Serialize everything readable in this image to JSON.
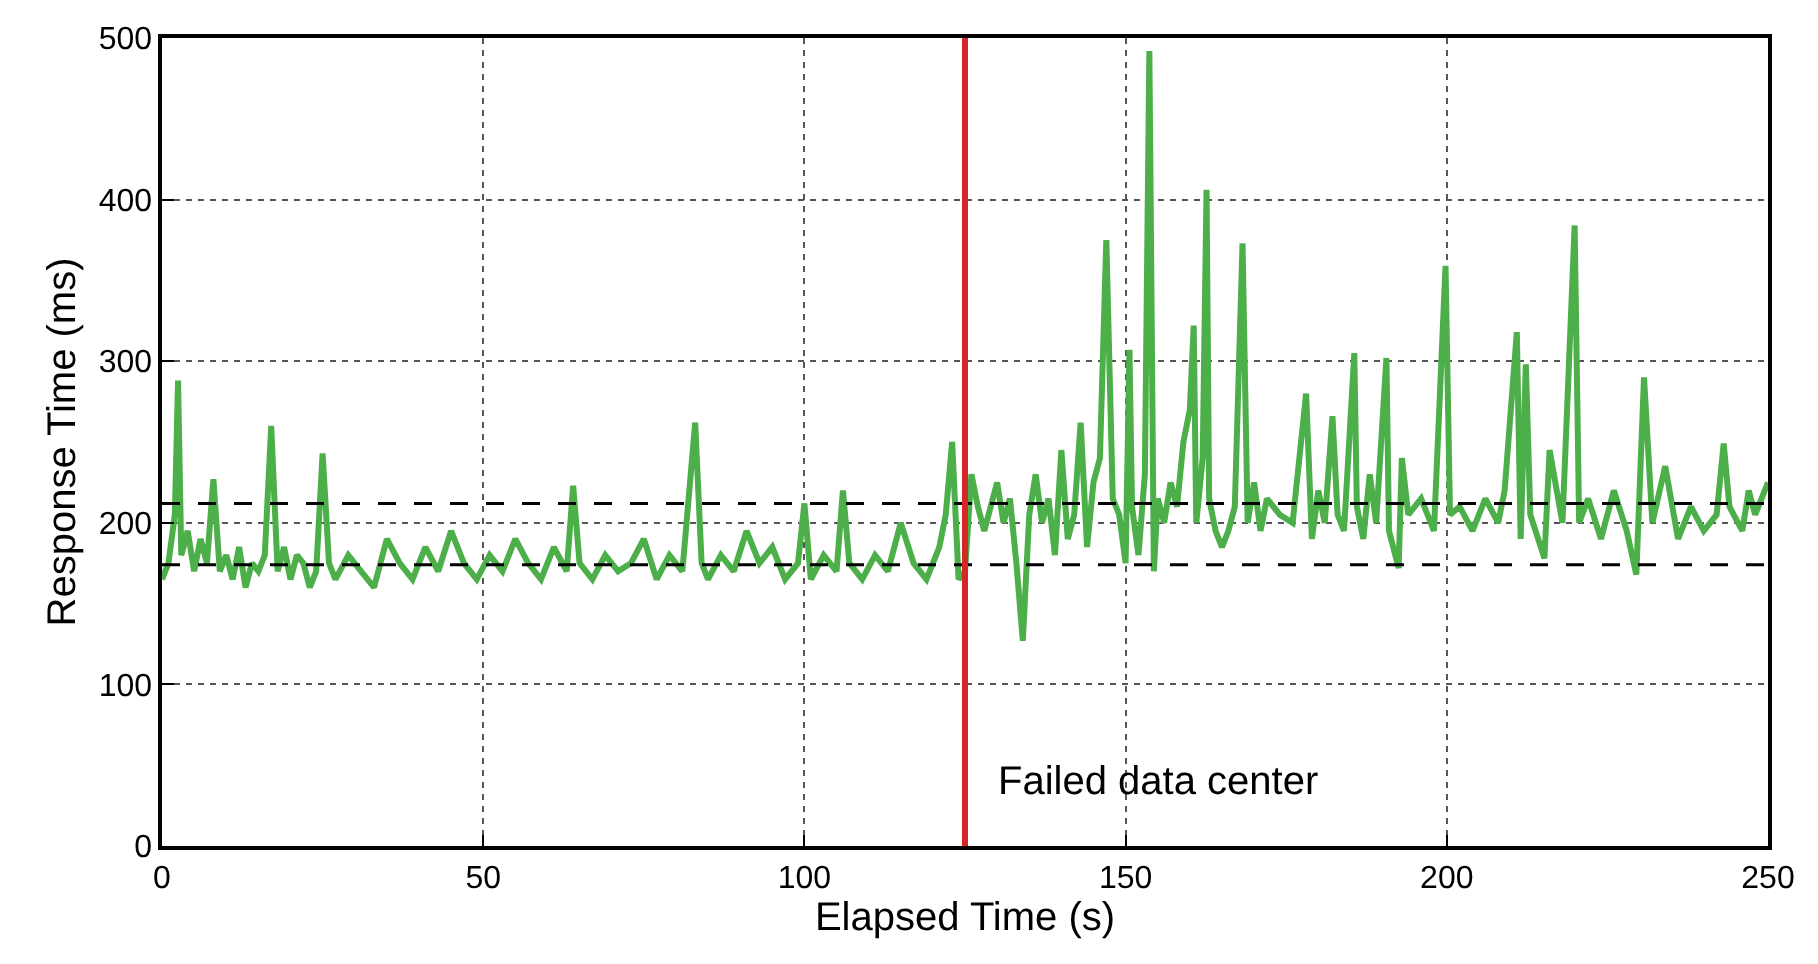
{
  "chart_data": {
    "type": "line",
    "xlabel": "Elapsed Time (s)",
    "ylabel": "Response Time (ms)",
    "xlim": [
      0,
      250
    ],
    "ylim": [
      0,
      500
    ],
    "xticks": [
      0,
      50,
      100,
      150,
      200,
      250
    ],
    "yticks": [
      0,
      100,
      200,
      300,
      400,
      500
    ],
    "grid": true,
    "marker": "none",
    "line_style": "solid",
    "series": [
      {
        "color": "#4daf4a",
        "x": [
          0,
          1,
          2,
          2.5,
          3,
          4,
          5,
          6,
          7,
          8,
          9,
          10,
          11,
          12,
          13,
          14,
          15,
          16,
          17,
          18,
          19,
          20,
          21,
          22,
          23,
          24,
          25,
          26,
          27,
          29,
          31,
          33,
          35,
          37,
          39,
          41,
          43,
          45,
          47,
          49,
          51,
          53,
          55,
          57,
          59,
          61,
          63,
          64,
          65,
          67,
          69,
          71,
          73,
          75,
          77,
          79,
          81,
          83,
          84,
          85,
          87,
          89,
          91,
          93,
          95,
          97,
          99,
          100,
          101,
          103,
          105,
          106,
          107,
          109,
          111,
          113,
          115,
          117,
          119,
          121,
          122,
          123,
          124,
          125,
          126,
          127,
          128,
          130,
          131,
          132,
          133,
          134,
          135,
          136,
          137,
          138,
          139,
          140,
          141,
          142,
          143,
          144,
          145,
          146,
          147,
          148,
          149,
          150,
          150.6,
          151,
          152,
          153,
          153.7,
          154.4,
          155,
          156,
          157,
          158,
          159,
          160,
          160.6,
          161,
          162,
          162.6,
          163,
          164,
          165,
          166,
          167,
          168.2,
          169,
          170,
          171,
          172,
          174,
          176,
          178.1,
          179,
          180,
          181,
          182.2,
          183,
          184,
          185.6,
          186,
          187,
          188,
          189,
          190.6,
          191,
          192.5,
          193,
          194,
          196,
          198,
          199.8,
          200.5,
          202,
          204,
          206,
          208,
          209,
          210.9,
          211.5,
          212.3,
          213,
          215.2,
          216,
          218,
          219.9,
          220.6,
          222,
          224,
          226,
          228,
          229.5,
          230.7,
          232,
          234,
          236,
          238,
          240,
          242,
          243.1,
          244,
          246,
          247,
          248,
          249,
          250
        ],
        "values": [
          165,
          175,
          205,
          288,
          180,
          195,
          170,
          190,
          175,
          227,
          170,
          180,
          165,
          185,
          160,
          175,
          170,
          180,
          260,
          170,
          185,
          165,
          180,
          175,
          160,
          170,
          243,
          175,
          165,
          180,
          170,
          160,
          190,
          175,
          165,
          185,
          170,
          195,
          175,
          165,
          180,
          170,
          190,
          175,
          165,
          185,
          170,
          223,
          175,
          165,
          180,
          170,
          175,
          190,
          165,
          180,
          170,
          262,
          175,
          165,
          180,
          170,
          195,
          175,
          185,
          165,
          175,
          212,
          165,
          180,
          170,
          220,
          175,
          165,
          180,
          170,
          200,
          175,
          165,
          185,
          205,
          250,
          165,
          170,
          230,
          210,
          195,
          225,
          200,
          215,
          175,
          127,
          205,
          230,
          200,
          215,
          180,
          245,
          190,
          205,
          262,
          185,
          225,
          240,
          375,
          215,
          205,
          175,
          307,
          210,
          180,
          230,
          492,
          170,
          215,
          200,
          225,
          210,
          250,
          270,
          322,
          200,
          240,
          406,
          215,
          195,
          185,
          195,
          210,
          373,
          200,
          225,
          195,
          215,
          205,
          200,
          280,
          190,
          220,
          200,
          266,
          205,
          195,
          305,
          210,
          190,
          230,
          200,
          302,
          195,
          172,
          240,
          205,
          215,
          195,
          359,
          205,
          210,
          195,
          215,
          200,
          220,
          318,
          190,
          298,
          205,
          178,
          245,
          200,
          384,
          200,
          215,
          190,
          220,
          195,
          168,
          290,
          200,
          235,
          190,
          210,
          195,
          205,
          249,
          210,
          195,
          220,
          205,
          215,
          225
        ]
      }
    ],
    "ref_lines": [
      {
        "axis": "y",
        "value": 212,
        "color": "#000000",
        "line_style": "dashed"
      },
      {
        "axis": "y",
        "value": 174,
        "color": "#000000",
        "line_style": "dashed"
      },
      {
        "axis": "x",
        "value": 125,
        "color": "#d62728",
        "line_style": "solid"
      }
    ],
    "annotations": [
      {
        "text": "Failed data center",
        "x": 125,
        "y": 40
      }
    ]
  }
}
